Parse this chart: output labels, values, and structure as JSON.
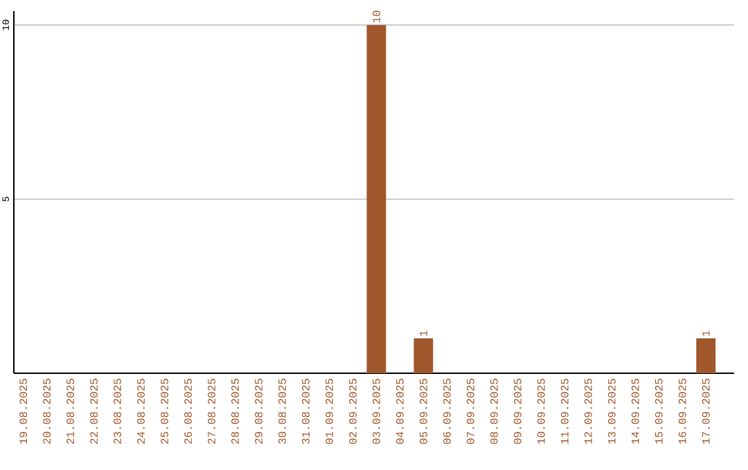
{
  "chart_data": {
    "type": "bar",
    "categories": [
      "19.08.2025",
      "20.08.2025",
      "21.08.2025",
      "22.08.2025",
      "23.08.2025",
      "24.08.2025",
      "25.08.2025",
      "26.08.2025",
      "27.08.2025",
      "28.08.2025",
      "29.08.2025",
      "30.08.2025",
      "31.08.2025",
      "01.09.2025",
      "02.09.2025",
      "03.09.2025",
      "04.09.2025",
      "05.09.2025",
      "06.09.2025",
      "07.09.2025",
      "08.09.2025",
      "09.09.2025",
      "10.09.2025",
      "11.09.2025",
      "12.09.2025",
      "13.09.2025",
      "14.09.2025",
      "15.09.2025",
      "16.09.2025",
      "17.09.2025"
    ],
    "values": [
      0,
      0,
      0,
      0,
      0,
      0,
      0,
      0,
      0,
      0,
      0,
      0,
      0,
      0,
      0,
      10,
      0,
      1,
      0,
      0,
      0,
      0,
      0,
      0,
      0,
      0,
      0,
      0,
      0,
      1
    ],
    "value_labels": [
      null,
      null,
      null,
      null,
      null,
      null,
      null,
      null,
      null,
      null,
      null,
      null,
      null,
      null,
      null,
      "10",
      null,
      "1",
      null,
      null,
      null,
      null,
      null,
      null,
      null,
      null,
      null,
      null,
      null,
      "1"
    ],
    "color": "#a0572b",
    "ylim": [
      0,
      10.4
    ],
    "yticks": [
      5,
      10
    ],
    "grid": "y"
  }
}
